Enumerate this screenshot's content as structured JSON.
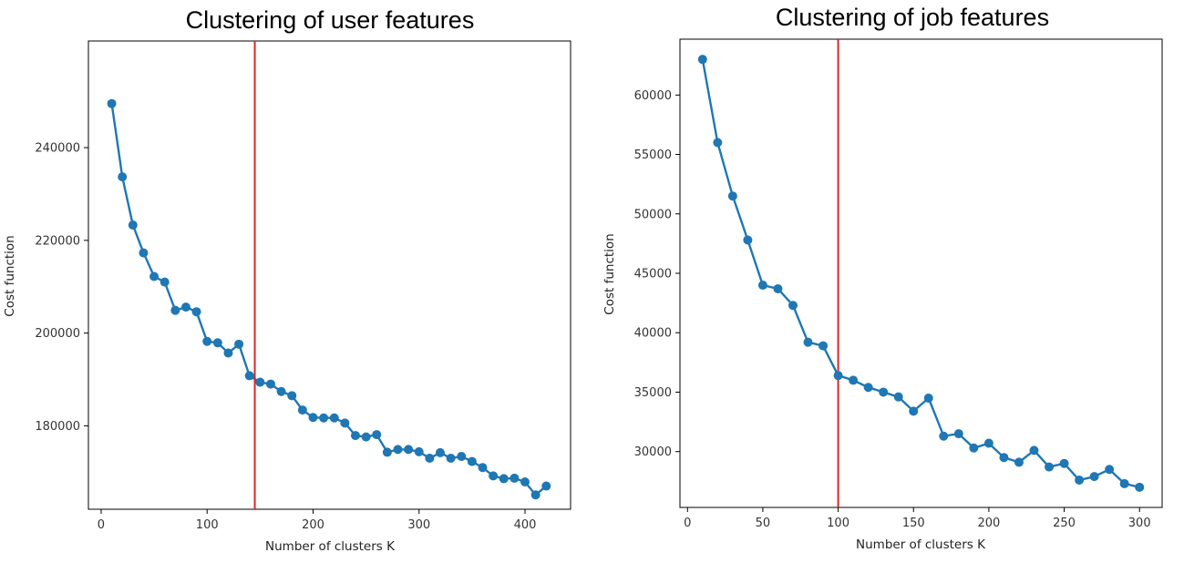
{
  "chart_data": [
    {
      "type": "line",
      "title": "Clustering of user features",
      "xlabel": "Number of clusters K",
      "ylabel": "Cost function",
      "xlim": [
        -12,
        443
      ],
      "ylim": [
        162000,
        263000
      ],
      "xticks": [
        0,
        100,
        200,
        300,
        400
      ],
      "yticks": [
        180000,
        200000,
        220000,
        240000
      ],
      "vline": 145,
      "grid": false,
      "color": "#1f77b4",
      "vline_color": "#d62728",
      "x": [
        10,
        20,
        30,
        40,
        50,
        60,
        70,
        80,
        90,
        100,
        110,
        120,
        130,
        140,
        150,
        160,
        170,
        180,
        190,
        200,
        210,
        220,
        230,
        240,
        250,
        260,
        270,
        280,
        290,
        300,
        310,
        320,
        330,
        340,
        350,
        360,
        370,
        380,
        390,
        400,
        410,
        420
      ],
      "values": [
        249500,
        233700,
        223300,
        217300,
        212200,
        211000,
        204900,
        205600,
        204600,
        198200,
        197900,
        195700,
        197600,
        190800,
        189400,
        189000,
        187400,
        186500,
        183400,
        181800,
        181700,
        181700,
        180600,
        177900,
        177600,
        178100,
        174300,
        174900,
        174900,
        174400,
        173000,
        174200,
        173000,
        173400,
        172300,
        171000,
        169200,
        168600,
        168700,
        167900,
        165100,
        167000
      ]
    },
    {
      "type": "line",
      "title": "Clustering of job features",
      "xlabel": "Number of clusters K",
      "ylabel": "Cost function",
      "xlim": [
        -5,
        315
      ],
      "ylim": [
        25300,
        64700
      ],
      "xticks": [
        0,
        50,
        100,
        150,
        200,
        250,
        300
      ],
      "yticks": [
        30000,
        35000,
        40000,
        45000,
        50000,
        55000,
        60000
      ],
      "vline": 100,
      "grid": false,
      "color": "#1f77b4",
      "vline_color": "#d62728",
      "x": [
        10,
        20,
        30,
        40,
        50,
        60,
        70,
        80,
        90,
        100,
        110,
        120,
        130,
        140,
        150,
        160,
        170,
        180,
        190,
        200,
        210,
        220,
        230,
        240,
        250,
        260,
        270,
        280,
        290,
        300
      ],
      "values": [
        63000,
        56000,
        51500,
        47800,
        44000,
        43700,
        42300,
        39200,
        38900,
        36400,
        36000,
        35400,
        35000,
        34600,
        33400,
        34500,
        31300,
        31500,
        30300,
        30700,
        29500,
        29100,
        30100,
        28700,
        29000,
        27600,
        27900,
        28500,
        27300,
        27000
      ]
    }
  ]
}
